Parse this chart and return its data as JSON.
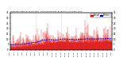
{
  "title": "Milwaukee Weather Wind Speed  Actual and Median  by Minute  (24 Hours) (Old)",
  "background_color": "#ffffff",
  "plot_bg_color": "#ffffff",
  "grid_color": "#aaaaaa",
  "bar_color": "#dd0000",
  "median_color": "#0000cc",
  "median_style": "--",
  "ylim": [
    0,
    35
  ],
  "n_points": 1440,
  "seed": 42,
  "legend_actual_color": "#dd0000",
  "legend_median_color": "#0000cc",
  "figsize": [
    1.6,
    0.87
  ],
  "dpi": 100
}
